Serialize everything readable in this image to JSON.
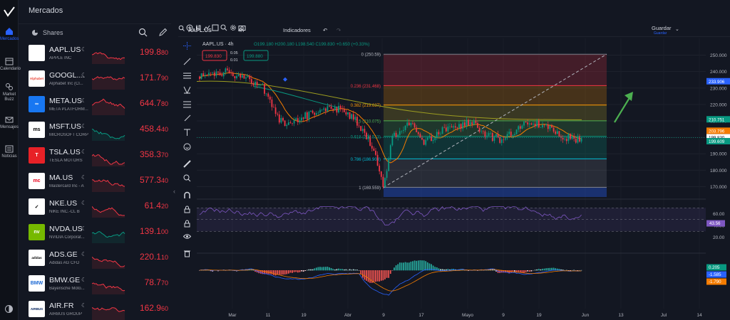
{
  "nav": {
    "items": [
      {
        "label": "Mercados",
        "icon": "home-icon",
        "active": true
      },
      {
        "label": "Calendario",
        "icon": "calendar-icon"
      },
      {
        "label": "Market Buzz",
        "icon": "buzz-icon"
      },
      {
        "label": "Mensajes",
        "icon": "mail-icon"
      },
      {
        "label": "Noticias",
        "icon": "news-icon"
      }
    ]
  },
  "header": {
    "title": "Mercados"
  },
  "watchlist": {
    "label": "Shares",
    "rows": [
      {
        "symbol": "AAPL.US",
        "name": "APPLE INC",
        "price": "199.880",
        "logo": "",
        "logo_bg": "#ffffff",
        "logo_fg": "#000000",
        "trend": "down"
      },
      {
        "symbol": "GOOGL....",
        "name": "Alphabet Inc (Cl...",
        "price": "171.790",
        "logo": "Alphabet",
        "logo_bg": "#ffffff",
        "logo_fg": "#ea4335",
        "trend": "down"
      },
      {
        "symbol": "META.US",
        "name": "META PLATFORM...",
        "price": "644.780",
        "logo": "∞",
        "logo_bg": "#1877f2",
        "logo_fg": "#ffffff",
        "trend": "down"
      },
      {
        "symbol": "MSFT.US",
        "name": "MICROSOFT CORP",
        "price": "458.440",
        "logo": "ms",
        "logo_bg": "#ffffff",
        "logo_fg": "#000000",
        "trend": "green"
      },
      {
        "symbol": "TSLA.US",
        "name": "TESLA MOTORS",
        "price": "358.370",
        "logo": "T",
        "logo_bg": "#e82127",
        "logo_fg": "#ffffff",
        "trend": "down"
      },
      {
        "symbol": "MA.US",
        "name": "Mastercard Inc - A",
        "price": "577.340",
        "logo": "mc",
        "logo_bg": "#ffffff",
        "logo_fg": "#eb001b",
        "trend": "down"
      },
      {
        "symbol": "NKE.US",
        "name": "NIKE INC.-CL B",
        "price": "61.420",
        "logo": "✓",
        "logo_bg": "#ffffff",
        "logo_fg": "#000000",
        "trend": "down"
      },
      {
        "symbol": "NVDA.US",
        "name": "NVIDIA Corporat...",
        "price": "139.100",
        "logo": "nv",
        "logo_bg": "#76b900",
        "logo_fg": "#ffffff",
        "trend": "green"
      },
      {
        "symbol": "ADS.GE",
        "name": "Adidas AG CFD",
        "price": "220.110",
        "logo": "adidas",
        "logo_bg": "#ffffff",
        "logo_fg": "#000000",
        "trend": "down"
      },
      {
        "symbol": "BMW.GE",
        "name": "Bayerische Moto...",
        "price": "78.770",
        "logo": "BMW",
        "logo_bg": "#ffffff",
        "logo_fg": "#1c69d4",
        "trend": "down"
      },
      {
        "symbol": "AIR.FR",
        "name": "AIRBUS GROUP",
        "price": "162.960",
        "logo": "AIRBUS",
        "logo_bg": "#ffffff",
        "logo_fg": "#00205b",
        "trend": "down"
      }
    ]
  },
  "toolbar": {
    "symbol": "AAPL.US",
    "interval": "4h",
    "indicators": "Indicadores",
    "save": "Guardar",
    "save_sub": "Guardar"
  },
  "legend": {
    "title": "AAPL.US · 4h",
    "ohlc": "O199.180 H200.180 L198.540 C199.830 +0.650 (+0.33%)",
    "sell_price": "199.830",
    "buy_price": "199.880",
    "spread_top": "0.05",
    "spread_bottom": "0.01"
  },
  "fib": {
    "levels": [
      {
        "label": "0 (250.59)",
        "price": 250.59,
        "color": "#787b86"
      },
      {
        "label": "0.236 (231.468)",
        "price": 231.468,
        "color": "#f23645"
      },
      {
        "label": "0.382 (219.637)",
        "price": 219.637,
        "color": "#ff9800"
      },
      {
        "label": "0.5 (210.075)",
        "price": 210.075,
        "color": "#4caf50"
      },
      {
        "label": "0.618 (200.513)",
        "price": 200.513,
        "color": "#089981"
      },
      {
        "label": "0.786 (186.903)",
        "price": 186.903,
        "color": "#00bcd4"
      },
      {
        "label": "1 (169.559)",
        "price": 169.559,
        "color": "#787b86"
      }
    ]
  },
  "price_axis": {
    "ticks": [
      "250.000",
      "240.000",
      "230.000",
      "220.000",
      "210.000",
      "200.000",
      "190.000",
      "180.000",
      "170.000"
    ],
    "labels": [
      {
        "text": "233.906",
        "color": "#2962ff"
      },
      {
        "text": "210.751",
        "color": "#089981"
      },
      {
        "text": "203.796",
        "color": "#f57c00"
      },
      {
        "text": "199.830",
        "color": "#131722"
      },
      {
        "text": "199.609",
        "color": "#089981"
      }
    ]
  },
  "rsi": {
    "ticks": [
      "60.00",
      "40.00",
      "20.00"
    ],
    "value": "43.56"
  },
  "macd": {
    "values": [
      {
        "text": "0.205",
        "color": "#089981"
      },
      {
        "text": "-1.585",
        "color": "#2962ff"
      },
      {
        "text": "-1.790",
        "color": "#f57c00"
      }
    ]
  },
  "time_axis": {
    "labels": [
      "Mar",
      "11",
      "19",
      "Abr",
      "9",
      "17",
      "Mayo",
      "9",
      "19",
      "Jun",
      "13",
      "Jul",
      "14"
    ]
  },
  "colors": {
    "up": "#089981",
    "down": "#f23645",
    "bg": "#131722"
  }
}
